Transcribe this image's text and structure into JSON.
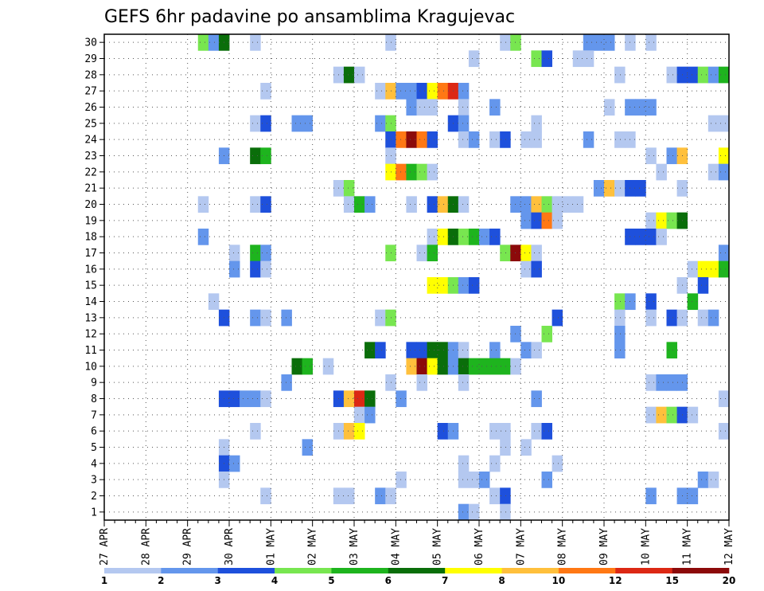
{
  "chart_data": {
    "type": "heatmap",
    "title": "GEFS 6hr padavine po ansamblima Kragujevac",
    "xlabel": "",
    "ylabel": "",
    "x_tick_labels": [
      "27 APR",
      "28 APR",
      "29 APR",
      "30 APR",
      "01 MAY",
      "02 MAY",
      "03 MAY",
      "04 MAY",
      "05 MAY",
      "06 MAY",
      "07 MAY",
      "08 MAY",
      "09 MAY",
      "10 MAY",
      "11 MAY",
      "12 MAY"
    ],
    "x_steps": 60,
    "steps_per_day": 4,
    "y_range": [
      1,
      30
    ],
    "grid": true,
    "colorbar": {
      "position": "bottom",
      "tick_labels": [
        "1",
        "2",
        "3",
        "4",
        "5",
        "6",
        "7",
        "8",
        "10",
        "12",
        "15",
        "20"
      ],
      "colors": [
        "#b4c8f0",
        "#6496ec",
        "#1e50dc",
        "#78e650",
        "#1eb41e",
        "#0a6e0a",
        "#ffff00",
        "#ffc03c",
        "#ff7814",
        "#dc2814",
        "#8c0a0a"
      ]
    },
    "cells": [
      [
        30,
        9,
        3
      ],
      [
        30,
        10,
        1
      ],
      [
        30,
        11,
        5
      ],
      [
        30,
        14,
        0
      ],
      [
        30,
        27,
        0
      ],
      [
        30,
        38,
        0
      ],
      [
        30,
        39,
        3
      ],
      [
        30,
        46,
        1
      ],
      [
        30,
        47,
        1
      ],
      [
        30,
        48,
        1
      ],
      [
        30,
        50,
        0
      ],
      [
        30,
        52,
        0
      ],
      [
        29,
        35,
        0
      ],
      [
        29,
        41,
        3
      ],
      [
        29,
        42,
        2
      ],
      [
        29,
        45,
        0
      ],
      [
        29,
        46,
        0
      ],
      [
        28,
        22,
        0
      ],
      [
        28,
        23,
        5
      ],
      [
        28,
        24,
        0
      ],
      [
        28,
        49,
        0
      ],
      [
        28,
        54,
        0
      ],
      [
        28,
        55,
        2
      ],
      [
        28,
        56,
        2
      ],
      [
        28,
        57,
        3
      ],
      [
        28,
        58,
        1
      ],
      [
        28,
        59,
        4
      ],
      [
        27,
        15,
        0
      ],
      [
        27,
        26,
        0
      ],
      [
        27,
        27,
        7
      ],
      [
        27,
        28,
        1
      ],
      [
        27,
        29,
        1
      ],
      [
        27,
        30,
        2
      ],
      [
        27,
        31,
        6
      ],
      [
        27,
        32,
        8
      ],
      [
        27,
        33,
        9
      ],
      [
        27,
        34,
        1
      ],
      [
        26,
        29,
        1
      ],
      [
        26,
        30,
        0
      ],
      [
        26,
        31,
        0
      ],
      [
        26,
        34,
        0
      ],
      [
        26,
        37,
        1
      ],
      [
        26,
        48,
        0
      ],
      [
        26,
        50,
        1
      ],
      [
        26,
        51,
        1
      ],
      [
        26,
        52,
        1
      ],
      [
        25,
        14,
        0
      ],
      [
        25,
        15,
        2
      ],
      [
        25,
        18,
        1
      ],
      [
        25,
        19,
        1
      ],
      [
        25,
        26,
        1
      ],
      [
        25,
        27,
        3
      ],
      [
        25,
        33,
        2
      ],
      [
        25,
        34,
        1
      ],
      [
        25,
        41,
        0
      ],
      [
        25,
        58,
        0
      ],
      [
        25,
        59,
        0
      ],
      [
        24,
        27,
        2
      ],
      [
        24,
        28,
        8
      ],
      [
        24,
        29,
        10
      ],
      [
        24,
        30,
        8
      ],
      [
        24,
        31,
        2
      ],
      [
        24,
        34,
        0
      ],
      [
        24,
        35,
        1
      ],
      [
        24,
        37,
        0
      ],
      [
        24,
        38,
        2
      ],
      [
        24,
        40,
        0
      ],
      [
        24,
        41,
        0
      ],
      [
        24,
        46,
        1
      ],
      [
        24,
        49,
        0
      ],
      [
        24,
        50,
        0
      ],
      [
        23,
        11,
        1
      ],
      [
        23,
        14,
        5
      ],
      [
        23,
        15,
        4
      ],
      [
        23,
        27,
        0
      ],
      [
        23,
        52,
        0
      ],
      [
        23,
        54,
        1
      ],
      [
        23,
        55,
        7
      ],
      [
        23,
        59,
        6
      ],
      [
        22,
        27,
        6
      ],
      [
        22,
        28,
        8
      ],
      [
        22,
        29,
        4
      ],
      [
        22,
        30,
        3
      ],
      [
        22,
        31,
        0
      ],
      [
        22,
        53,
        0
      ],
      [
        22,
        58,
        0
      ],
      [
        22,
        59,
        1
      ],
      [
        21,
        22,
        0
      ],
      [
        21,
        23,
        3
      ],
      [
        21,
        47,
        1
      ],
      [
        21,
        48,
        7
      ],
      [
        21,
        49,
        0
      ],
      [
        21,
        50,
        2
      ],
      [
        21,
        51,
        2
      ],
      [
        21,
        55,
        0
      ],
      [
        20,
        9,
        0
      ],
      [
        20,
        14,
        0
      ],
      [
        20,
        15,
        2
      ],
      [
        20,
        23,
        0
      ],
      [
        20,
        24,
        4
      ],
      [
        20,
        25,
        1
      ],
      [
        20,
        29,
        0
      ],
      [
        20,
        31,
        2
      ],
      [
        20,
        32,
        7
      ],
      [
        20,
        33,
        5
      ],
      [
        20,
        34,
        0
      ],
      [
        20,
        39,
        1
      ],
      [
        20,
        40,
        1
      ],
      [
        20,
        41,
        7
      ],
      [
        20,
        42,
        3
      ],
      [
        20,
        43,
        0
      ],
      [
        20,
        44,
        0
      ],
      [
        20,
        45,
        0
      ],
      [
        19,
        40,
        1
      ],
      [
        19,
        41,
        2
      ],
      [
        19,
        42,
        8
      ],
      [
        19,
        43,
        0
      ],
      [
        19,
        52,
        0
      ],
      [
        19,
        53,
        6
      ],
      [
        19,
        54,
        3
      ],
      [
        19,
        55,
        5
      ],
      [
        18,
        9,
        1
      ],
      [
        18,
        31,
        0
      ],
      [
        18,
        32,
        6
      ],
      [
        18,
        33,
        5
      ],
      [
        18,
        34,
        3
      ],
      [
        18,
        35,
        4
      ],
      [
        18,
        36,
        1
      ],
      [
        18,
        37,
        2
      ],
      [
        18,
        50,
        2
      ],
      [
        18,
        51,
        2
      ],
      [
        18,
        52,
        2
      ],
      [
        18,
        53,
        0
      ],
      [
        17,
        12,
        0
      ],
      [
        17,
        14,
        4
      ],
      [
        17,
        15,
        1
      ],
      [
        17,
        27,
        3
      ],
      [
        17,
        30,
        0
      ],
      [
        17,
        31,
        4
      ],
      [
        17,
        38,
        3
      ],
      [
        17,
        39,
        10
      ],
      [
        17,
        40,
        6
      ],
      [
        17,
        41,
        0
      ],
      [
        17,
        59,
        1
      ],
      [
        16,
        12,
        1
      ],
      [
        16,
        14,
        2
      ],
      [
        16,
        15,
        0
      ],
      [
        16,
        40,
        0
      ],
      [
        16,
        41,
        2
      ],
      [
        16,
        56,
        0
      ],
      [
        16,
        57,
        6
      ],
      [
        16,
        58,
        6
      ],
      [
        16,
        59,
        4
      ],
      [
        15,
        31,
        6
      ],
      [
        15,
        32,
        6
      ],
      [
        15,
        33,
        3
      ],
      [
        15,
        34,
        1
      ],
      [
        15,
        35,
        2
      ],
      [
        15,
        55,
        0
      ],
      [
        15,
        57,
        2
      ],
      [
        14,
        10,
        0
      ],
      [
        14,
        49,
        3
      ],
      [
        14,
        50,
        1
      ],
      [
        14,
        52,
        2
      ],
      [
        14,
        56,
        4
      ],
      [
        13,
        11,
        2
      ],
      [
        13,
        14,
        1
      ],
      [
        13,
        15,
        0
      ],
      [
        13,
        17,
        1
      ],
      [
        13,
        26,
        0
      ],
      [
        13,
        27,
        3
      ],
      [
        13,
        43,
        2
      ],
      [
        13,
        49,
        0
      ],
      [
        13,
        52,
        0
      ],
      [
        13,
        54,
        2
      ],
      [
        13,
        55,
        0
      ],
      [
        13,
        57,
        0
      ],
      [
        13,
        58,
        1
      ],
      [
        12,
        39,
        1
      ],
      [
        12,
        42,
        3
      ],
      [
        12,
        49,
        1
      ],
      [
        11,
        25,
        5
      ],
      [
        11,
        26,
        2
      ],
      [
        11,
        29,
        2
      ],
      [
        11,
        30,
        2
      ],
      [
        11,
        31,
        5
      ],
      [
        11,
        32,
        5
      ],
      [
        11,
        33,
        1
      ],
      [
        11,
        34,
        0
      ],
      [
        11,
        37,
        1
      ],
      [
        11,
        40,
        1
      ],
      [
        11,
        41,
        0
      ],
      [
        11,
        49,
        1
      ],
      [
        11,
        54,
        4
      ],
      [
        10,
        18,
        5
      ],
      [
        10,
        19,
        4
      ],
      [
        10,
        21,
        0
      ],
      [
        10,
        29,
        7
      ],
      [
        10,
        30,
        10
      ],
      [
        10,
        31,
        6
      ],
      [
        10,
        32,
        5
      ],
      [
        10,
        33,
        1
      ],
      [
        10,
        34,
        5
      ],
      [
        10,
        35,
        4
      ],
      [
        10,
        36,
        4
      ],
      [
        10,
        37,
        4
      ],
      [
        10,
        38,
        4
      ],
      [
        10,
        39,
        0
      ],
      [
        9,
        17,
        1
      ],
      [
        9,
        27,
        0
      ],
      [
        9,
        30,
        0
      ],
      [
        9,
        34,
        0
      ],
      [
        9,
        52,
        0
      ],
      [
        9,
        53,
        1
      ],
      [
        9,
        54,
        1
      ],
      [
        9,
        55,
        1
      ],
      [
        8,
        11,
        2
      ],
      [
        8,
        12,
        2
      ],
      [
        8,
        13,
        1
      ],
      [
        8,
        14,
        1
      ],
      [
        8,
        15,
        0
      ],
      [
        8,
        22,
        2
      ],
      [
        8,
        23,
        7
      ],
      [
        8,
        24,
        9
      ],
      [
        8,
        25,
        5
      ],
      [
        8,
        28,
        1
      ],
      [
        8,
        41,
        1
      ],
      [
        8,
        59,
        0
      ],
      [
        7,
        24,
        0
      ],
      [
        7,
        25,
        1
      ],
      [
        7,
        52,
        0
      ],
      [
        7,
        53,
        7
      ],
      [
        7,
        54,
        3
      ],
      [
        7,
        55,
        2
      ],
      [
        7,
        56,
        0
      ],
      [
        6,
        14,
        0
      ],
      [
        6,
        22,
        0
      ],
      [
        6,
        23,
        7
      ],
      [
        6,
        24,
        6
      ],
      [
        6,
        32,
        2
      ],
      [
        6,
        33,
        1
      ],
      [
        6,
        37,
        0
      ],
      [
        6,
        38,
        0
      ],
      [
        6,
        41,
        0
      ],
      [
        6,
        42,
        2
      ],
      [
        6,
        59,
        0
      ],
      [
        5,
        11,
        0
      ],
      [
        5,
        19,
        1
      ],
      [
        5,
        38,
        0
      ],
      [
        5,
        40,
        0
      ],
      [
        4,
        11,
        2
      ],
      [
        4,
        12,
        1
      ],
      [
        4,
        34,
        0
      ],
      [
        4,
        37,
        0
      ],
      [
        4,
        43,
        0
      ],
      [
        3,
        11,
        0
      ],
      [
        3,
        28,
        0
      ],
      [
        3,
        34,
        0
      ],
      [
        3,
        35,
        0
      ],
      [
        3,
        36,
        1
      ],
      [
        3,
        42,
        1
      ],
      [
        3,
        57,
        1
      ],
      [
        3,
        58,
        0
      ],
      [
        2,
        15,
        0
      ],
      [
        2,
        22,
        0
      ],
      [
        2,
        23,
        0
      ],
      [
        2,
        26,
        1
      ],
      [
        2,
        27,
        0
      ],
      [
        2,
        37,
        0
      ],
      [
        2,
        38,
        2
      ],
      [
        2,
        52,
        1
      ],
      [
        2,
        55,
        1
      ],
      [
        2,
        56,
        1
      ],
      [
        1,
        38,
        0
      ],
      [
        1,
        34,
        1
      ],
      [
        1,
        35,
        0
      ]
    ]
  }
}
